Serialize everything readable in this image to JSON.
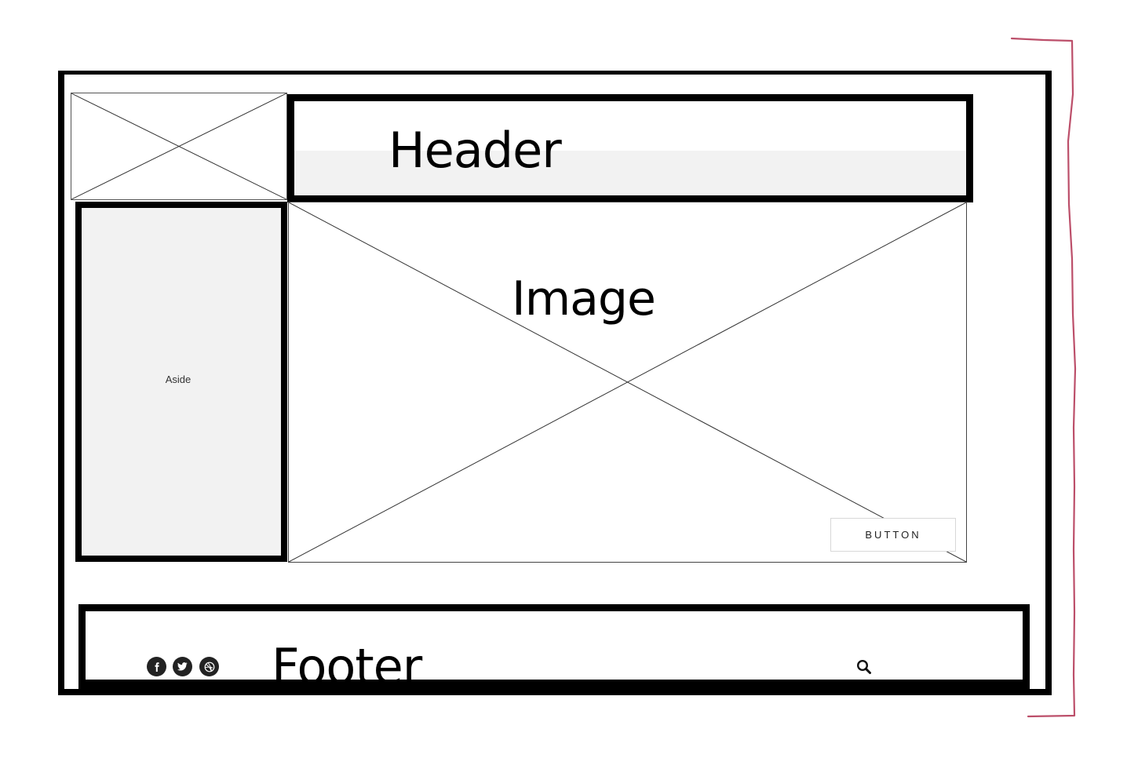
{
  "header": {
    "title": "Header"
  },
  "aside": {
    "label": "Aside"
  },
  "image": {
    "label": "Image",
    "button_label": "BUTTON"
  },
  "footer": {
    "title": "Footer",
    "social_icons": [
      "facebook-icon",
      "twitter-icon",
      "dribbble-icon"
    ],
    "search_icon": "search-icon"
  },
  "colors": {
    "outline": "#000000",
    "placeholder_fill": "#f2f2f2",
    "annotation_bracket": "#b03050"
  }
}
